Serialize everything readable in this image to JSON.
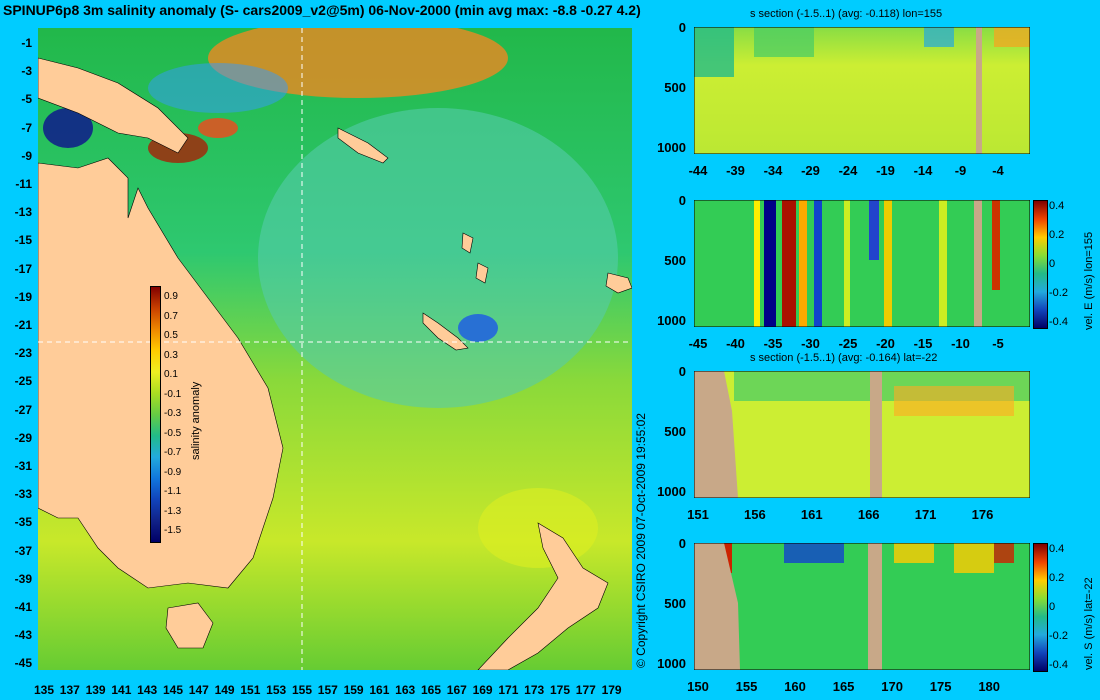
{
  "title": "SPINUP6p8 3m salinity anomaly (S- cars2009_v2@5m) 06-Nov-2000 (min avg max: -8.8 -0.27 4.2)",
  "copyright": "© Copyright CSIRO 2009   07-Oct-2009 19:55:02",
  "map": {
    "lat_labels": [
      "-1",
      "-3",
      "-5",
      "-7",
      "-9",
      "-11",
      "-13",
      "-15",
      "-17",
      "-19",
      "-21",
      "-23",
      "-25",
      "-27",
      "-29",
      "-31",
      "-33",
      "-35",
      "-37",
      "-39",
      "-41",
      "-43",
      "-45"
    ],
    "lon_labels": [
      "135",
      "137",
      "139",
      "141",
      "143",
      "145",
      "147",
      "149",
      "151",
      "153",
      "155",
      "157",
      "159",
      "161",
      "163",
      "165",
      "167",
      "169",
      "171",
      "173",
      "175",
      "177",
      "179"
    ],
    "colorbar_label": "salinity anomaly",
    "colorbar_ticks": [
      "0.9",
      "0.7",
      "0.5",
      "0.3",
      "0.1",
      "-0.1",
      "-0.3",
      "-0.5",
      "-0.7",
      "-0.9",
      "-1.1",
      "-1.3",
      "-1.5"
    ],
    "section_lon": 155,
    "section_lat": -22
  },
  "sections": [
    {
      "title": "s section (-1.5..1) (avg: -0.118) lon=155",
      "y_ticks": [
        "0",
        "500",
        "1000"
      ],
      "x_ticks": [
        "-44",
        "-39",
        "-34",
        "-29",
        "-24",
        "-19",
        "-14",
        "-9",
        "-4"
      ]
    },
    {
      "title": "",
      "y_ticks": [
        "0",
        "500",
        "1000"
      ],
      "x_ticks": [
        "-45",
        "-40",
        "-35",
        "-30",
        "-25",
        "-20",
        "-15",
        "-10",
        "-5"
      ],
      "colorbar_label": "vel. E (m/s) lon=155",
      "colorbar_ticks": [
        "0.4",
        "0.2",
        "0",
        "-0.2",
        "-0.4"
      ]
    },
    {
      "title": "s section (-1.5..1) (avg: -0.164) lat=-22",
      "y_ticks": [
        "0",
        "500",
        "1000"
      ],
      "x_ticks": [
        "151",
        "156",
        "161",
        "166",
        "171",
        "176"
      ]
    },
    {
      "title": "",
      "y_ticks": [
        "0",
        "500",
        "1000"
      ],
      "x_ticks": [
        "150",
        "155",
        "160",
        "165",
        "170",
        "175",
        "180"
      ],
      "colorbar_label": "vel. S (m/s) lat=-22",
      "colorbar_ticks": [
        "0.4",
        "0.2",
        "0",
        "-0.2",
        "-0.4"
      ]
    }
  ],
  "colors": {
    "background": "#00ccff",
    "land": "#ffcc99",
    "section_land": "#c8a888"
  }
}
